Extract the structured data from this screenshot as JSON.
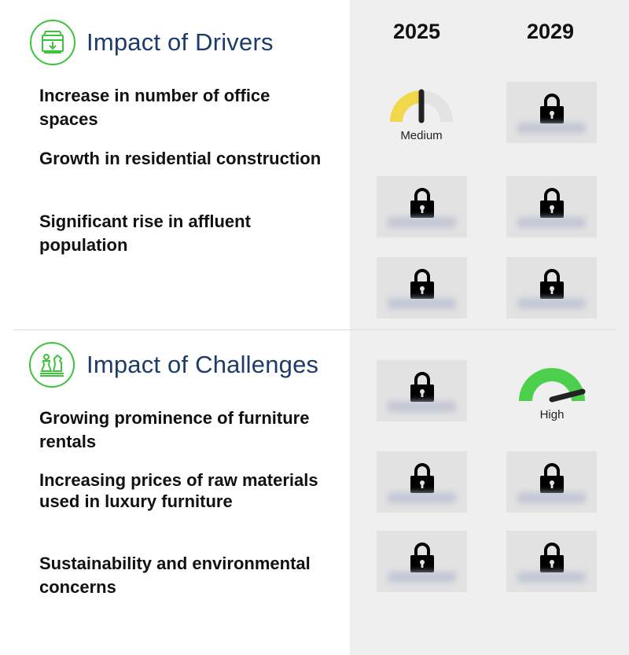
{
  "columns": {
    "year_1": "2025",
    "year_2": "2029"
  },
  "drivers": {
    "title": "Impact of Drivers",
    "icon": "chest-download-icon",
    "items": [
      {
        "label": "Increase in number of office spaces"
      },
      {
        "label": "Growth in residential construction"
      },
      {
        "label": "Significant rise in affluent population"
      }
    ],
    "first_gauge": {
      "label": "Medium",
      "level": 0.5,
      "color": "#f0d84a"
    }
  },
  "challenges": {
    "title": "Impact of Challenges",
    "icon": "chess-pieces-icon",
    "items": [
      {
        "label": "Growing prominence of furniture rentals"
      },
      {
        "label": "Increasing prices of raw materials used in luxury furniture"
      },
      {
        "label": "Sustainability and environmental concerns"
      }
    ],
    "first_gauge": {
      "label": "High",
      "level": 0.85,
      "color": "#4ccf4c"
    }
  }
}
